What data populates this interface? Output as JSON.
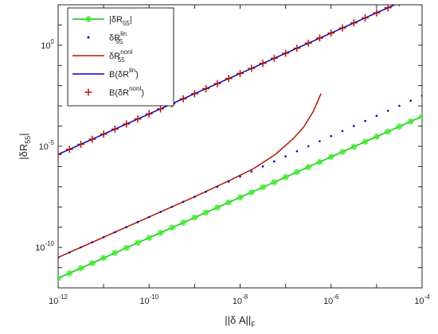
{
  "chart_data": {
    "type": "line",
    "xscale": "log",
    "yscale": "log",
    "xlim": [
      1e-12,
      0.0001
    ],
    "ylim": [
      1e-12,
      100.0
    ],
    "grid": false,
    "legend_placement": "top-left",
    "xlabel": {
      "main": "||δ A||",
      "sub": "F"
    },
    "ylabel": {
      "main": "|δR",
      "sub": "55",
      "tail": "|"
    },
    "x_ticks": [
      {
        "exp": "-12",
        "value": 1e-12
      },
      {
        "exp": "-10",
        "value": 1e-10
      },
      {
        "exp": "-8",
        "value": 1e-08
      },
      {
        "exp": "-6",
        "value": 1e-06
      },
      {
        "exp": "-4",
        "value": 0.0001
      }
    ],
    "y_ticks": [
      {
        "exp": "-10",
        "value": 1e-10
      },
      {
        "exp": "-5",
        "value": 1e-05
      },
      {
        "exp": "0",
        "value": 1
      }
    ],
    "series": [
      {
        "key": "abs",
        "legend": {
          "pre": "|δR",
          "sub": "55",
          "sup": "",
          "post": "|"
        },
        "color": "#33cc33",
        "style": "line+asterisk",
        "x": [
          1e-12,
          0.0001
        ],
        "y": [
          3e-12,
          0.0003
        ]
      },
      {
        "key": "lin",
        "legend": {
          "pre": "δR",
          "sub": "55",
          "sup": "lin",
          "post": ""
        },
        "color": "#0000cc",
        "style": "dot",
        "x": [
          1e-12,
          0.0001
        ],
        "y": [
          3.2e-11,
          0.0032
        ]
      },
      {
        "key": "nonl",
        "legend": {
          "pre": "δR",
          "sub": "55",
          "sup": "nonl",
          "post": ""
        },
        "color": "#bb1100",
        "style": "line",
        "x": [
          1e-12,
          1e-10,
          1e-09,
          6e-09,
          2e-08,
          6e-08,
          1.5e-07,
          2.5e-07,
          4e-07,
          6e-07
        ],
        "y": [
          3.2e-11,
          3.2e-09,
          3.2e-08,
          2.1e-07,
          8e-07,
          4e-06,
          2.5e-05,
          9e-05,
          0.0005,
          0.004
        ]
      },
      {
        "key": "blin",
        "legend": {
          "pre": "B(δR",
          "sub": "",
          "sup": "lin",
          "post": ")"
        },
        "color": "#0000cc",
        "style": "line",
        "x": [
          1e-12,
          0.0001
        ],
        "y": [
          4e-06,
          400.0
        ]
      },
      {
        "key": "bnonl",
        "legend": {
          "pre": "B(δR",
          "sub": "",
          "sup": "nonl",
          "post": ")"
        },
        "color": "#bb1100",
        "style": "plus",
        "x": [
          1e-12,
          0.0001
        ],
        "y": [
          4e-06,
          400.0
        ]
      }
    ]
  }
}
